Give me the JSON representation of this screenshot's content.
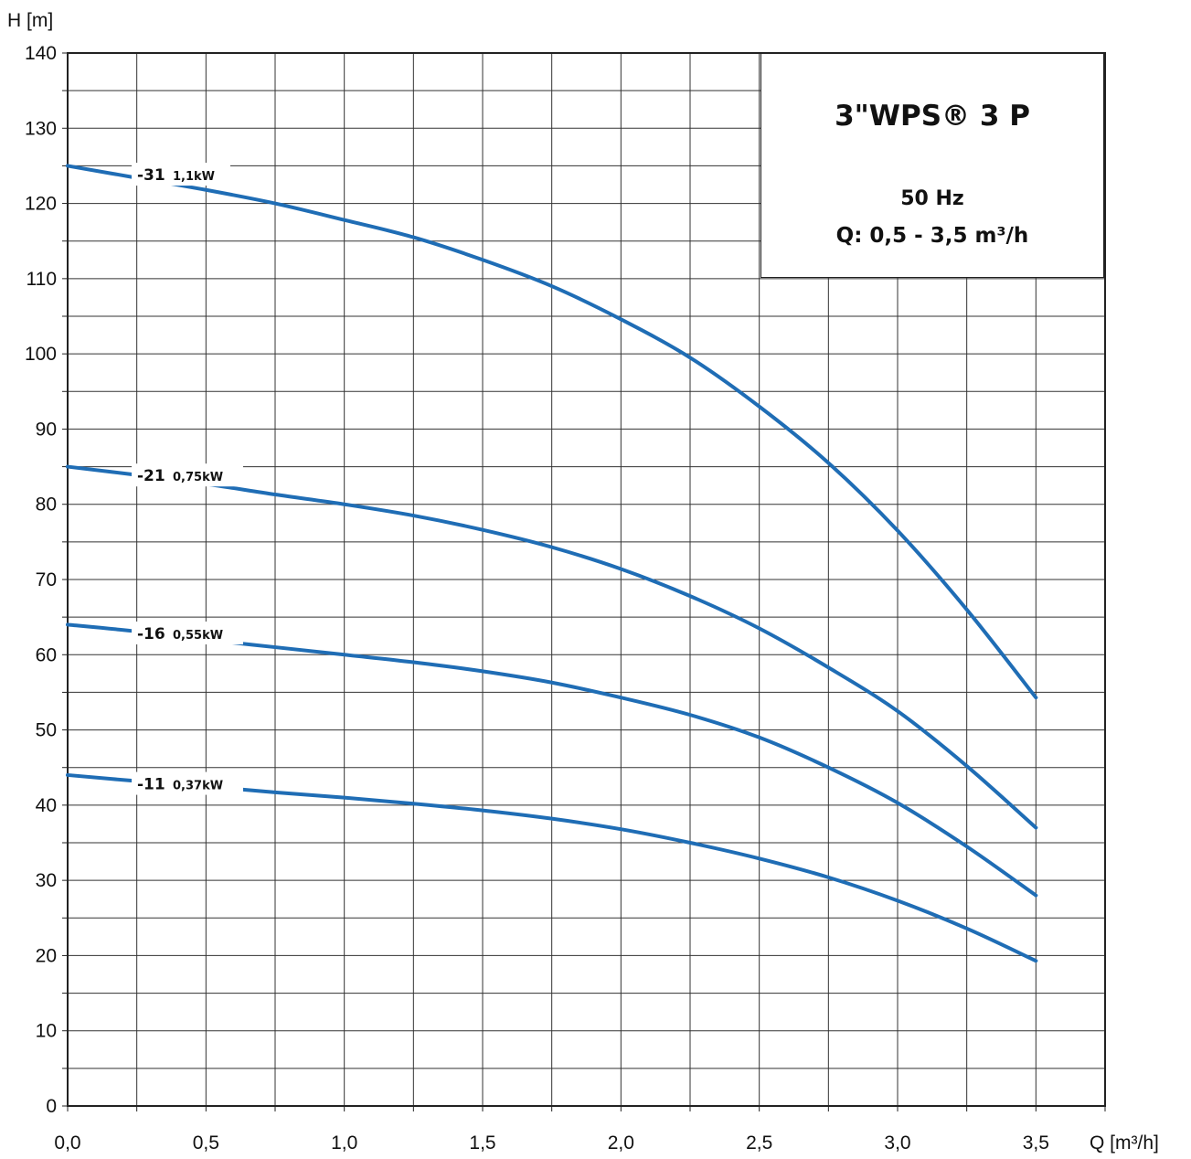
{
  "chart_data": {
    "type": "line",
    "title": "3\"WPS® 3 P",
    "subtitle_lines": [
      "50 Hz",
      "Q: 0,5 - 3,5 m³/h"
    ],
    "xlabel": "Q [m³/h]",
    "ylabel": "H [m]",
    "xlim": [
      0,
      3.75
    ],
    "ylim": [
      0,
      140
    ],
    "x_ticks": [
      0,
      0.5,
      1.0,
      1.5,
      2.0,
      2.5,
      3.0,
      3.5
    ],
    "x_tick_labels": [
      "0,0",
      "0,5",
      "1,0",
      "1,5",
      "2,0",
      "2,5",
      "3,0",
      "3,5"
    ],
    "y_ticks": [
      0,
      10,
      20,
      30,
      40,
      50,
      60,
      70,
      80,
      90,
      100,
      110,
      120,
      130,
      140
    ],
    "y_tick_labels": [
      "0",
      "10",
      "20",
      "30",
      "40",
      "50",
      "60",
      "70",
      "80",
      "90",
      "100",
      "110",
      "120",
      "130",
      "140"
    ],
    "grid": true,
    "line_color": "#1f6db5",
    "series": [
      {
        "name": "-31",
        "power": "1,1kW",
        "x": [
          0,
          0.25,
          0.5,
          0.75,
          1.0,
          1.25,
          1.5,
          1.75,
          2.0,
          2.25,
          2.5,
          2.75,
          3.0,
          3.25,
          3.5
        ],
        "y": [
          125,
          123.4,
          121.8,
          120,
          117.8,
          115.5,
          112.5,
          109,
          104.6,
          99.5,
          93,
          85.5,
          76.5,
          66,
          54.3
        ]
      },
      {
        "name": "-21",
        "power": "0,75kW",
        "x": [
          0,
          0.25,
          0.5,
          0.75,
          1.0,
          1.25,
          1.5,
          1.75,
          2.0,
          2.25,
          2.5,
          2.75,
          3.0,
          3.25,
          3.5
        ],
        "y": [
          85,
          83.9,
          82.7,
          81.3,
          80,
          78.5,
          76.6,
          74.3,
          71.4,
          67.8,
          63.5,
          58.3,
          52.5,
          45.2,
          37
        ]
      },
      {
        "name": "-16",
        "power": "0,55kW",
        "x": [
          0,
          0.25,
          0.5,
          0.75,
          1.0,
          1.25,
          1.5,
          1.75,
          2.0,
          2.25,
          2.5,
          2.75,
          3.0,
          3.25,
          3.5
        ],
        "y": [
          64,
          63.1,
          62,
          61,
          60,
          59,
          57.8,
          56.3,
          54.3,
          52,
          49,
          45,
          40.3,
          34.5,
          28
        ]
      },
      {
        "name": "-11",
        "power": "0,37kW",
        "x": [
          0,
          0.25,
          0.5,
          0.75,
          1.0,
          1.25,
          1.5,
          1.75,
          2.0,
          2.25,
          2.5,
          2.75,
          3.0,
          3.25,
          3.5
        ],
        "y": [
          44,
          43.2,
          42.5,
          41.7,
          41,
          40.2,
          39.3,
          38.2,
          36.8,
          35,
          32.9,
          30.4,
          27.3,
          23.6,
          19.3
        ]
      }
    ]
  }
}
